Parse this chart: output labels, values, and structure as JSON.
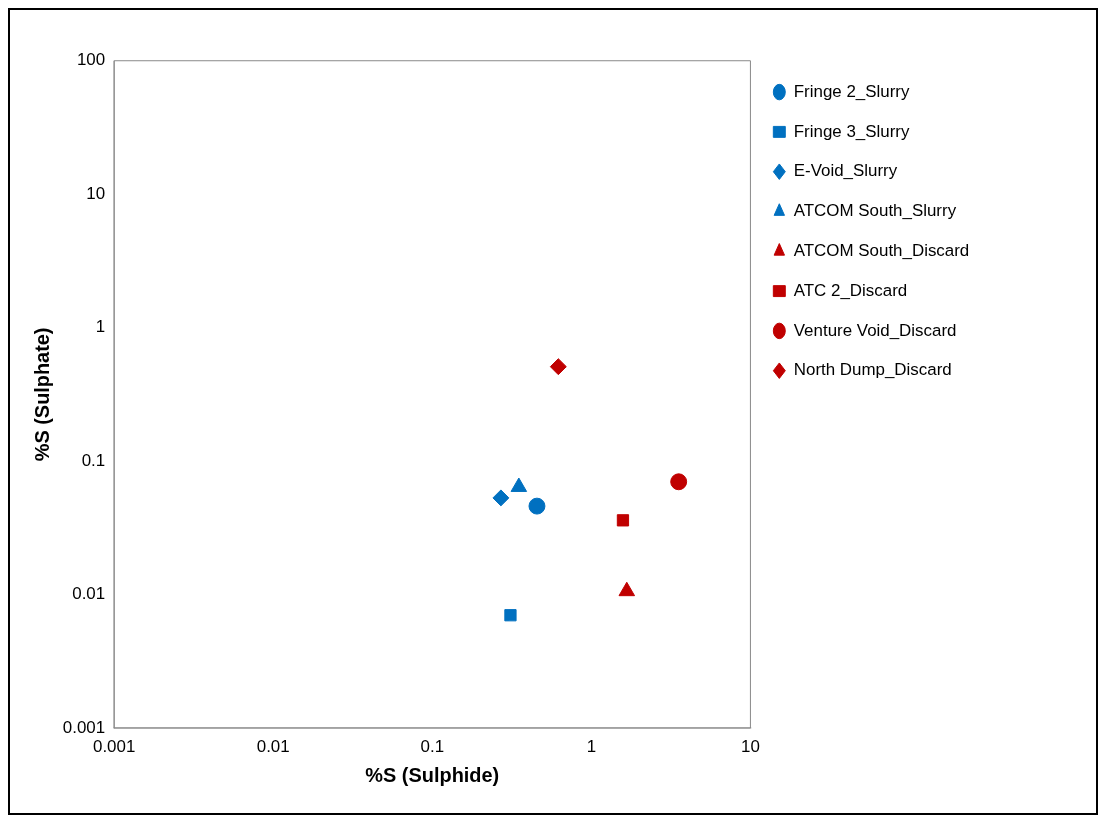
{
  "chart_data": {
    "type": "scatter",
    "xlabel": "%S (Sulphide)",
    "ylabel": "%S (Sulphate)",
    "log": "xy",
    "grid": false,
    "legend": "right",
    "xlim": [
      0.001,
      10
    ],
    "xticks": [
      0.001,
      0.01,
      0.1,
      1,
      10
    ],
    "ylim": [
      0.001,
      100
    ],
    "yticks": [
      0.001,
      0.01,
      0.1,
      1,
      10,
      100
    ],
    "series": [
      {
        "name": "Fringe 2_Slurry",
        "color": "#0070c0",
        "marker": "circle",
        "x": [
          0.455
        ],
        "values": [
          0.046
        ]
      },
      {
        "name": "Fringe 3_Slurry",
        "color": "#0070c0",
        "marker": "square",
        "x": [
          0.31
        ],
        "values": [
          0.007
        ]
      },
      {
        "name": "E-Void_Slurry",
        "color": "#0070c0",
        "marker": "diamond",
        "x": [
          0.27
        ],
        "values": [
          0.053
        ]
      },
      {
        "name": "ATCOM South_Slurry",
        "color": "#0070c0",
        "marker": "triangle",
        "x": [
          0.35
        ],
        "values": [
          0.064
        ]
      },
      {
        "name": "ATCOM South_Discard",
        "color": "#c00000",
        "marker": "triangle",
        "x": [
          1.67
        ],
        "values": [
          0.0106
        ]
      },
      {
        "name": "ATC 2_Discard",
        "color": "#c00000",
        "marker": "square",
        "x": [
          1.58
        ],
        "values": [
          0.036
        ]
      },
      {
        "name": "Venture Void_Discard",
        "color": "#c00000",
        "marker": "circle",
        "x": [
          3.54
        ],
        "values": [
          0.07
        ]
      },
      {
        "name": "North Dump_Discard",
        "color": "#c00000",
        "marker": "diamond",
        "x": [
          0.62
        ],
        "values": [
          0.51
        ]
      }
    ]
  }
}
